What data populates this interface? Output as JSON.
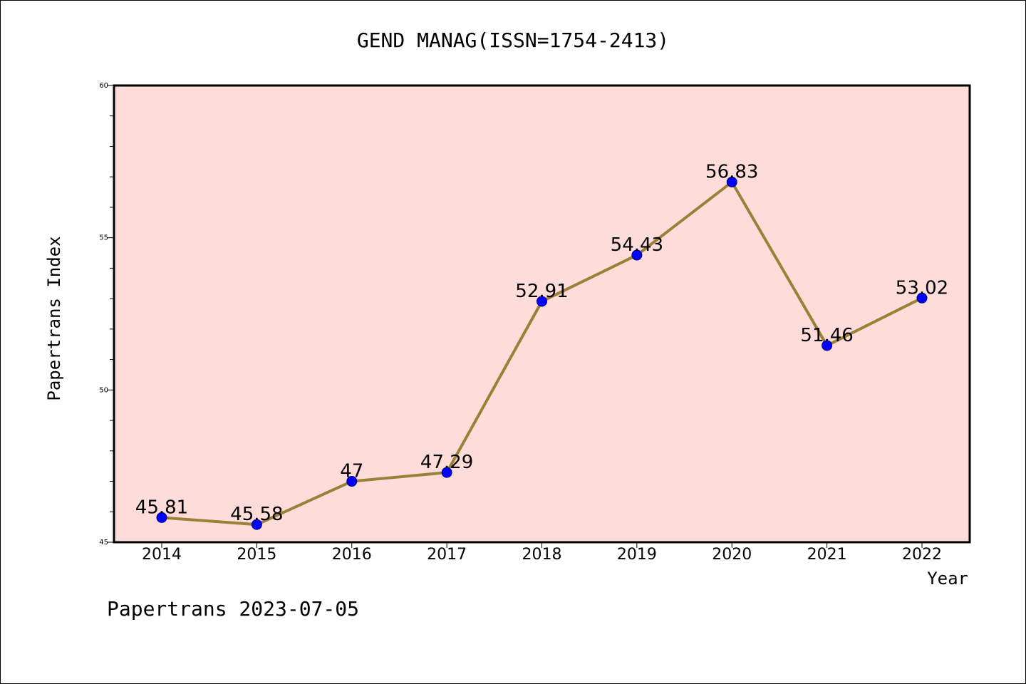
{
  "chart_data": {
    "type": "line",
    "title": "GEND MANAG(ISSN=1754-2413)",
    "xlabel": "Year",
    "ylabel": "Papertrans Index",
    "footer": "Papertrans 2023-07-05",
    "categories": [
      "2014",
      "2015",
      "2016",
      "2017",
      "2018",
      "2019",
      "2020",
      "2021",
      "2022"
    ],
    "values": [
      45.81,
      45.58,
      47,
      47.29,
      52.91,
      54.43,
      56.83,
      51.46,
      53.02
    ],
    "value_labels": [
      "45.81",
      "45.58",
      "47",
      "47.29",
      "52.91",
      "54.43",
      "56.83",
      "51.46",
      "53.02"
    ],
    "ylim": [
      45,
      60
    ],
    "y_ticks": [
      "45",
      "50",
      "55",
      "60"
    ],
    "grid": false,
    "colors": {
      "plot_background": "#fddcda",
      "line": "#9b8038",
      "marker": "#0000ff",
      "marker_edge": "#000080"
    }
  }
}
